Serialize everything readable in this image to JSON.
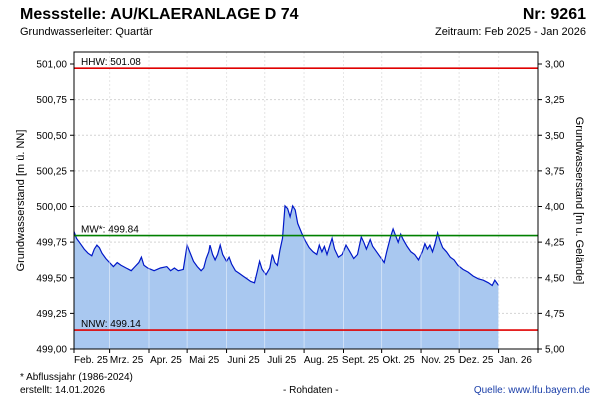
{
  "header": {
    "title_left": "Messstelle: AU/KLAERANLAGE D 74",
    "title_right": "Nr: 9261",
    "subtitle_left": "Grundwasserleiter: Quartär",
    "subtitle_right": "Zeitraum: Feb 2025 - Jan 2026"
  },
  "footer": {
    "note": "* Abflussjahr (1986-2024)",
    "created": "erstellt:  14.01.2026",
    "status": "- Rohdaten -",
    "source": "Quelle:  www.lfu.bayern.de"
  },
  "chart_data": {
    "type": "area",
    "ylabel": "Grundwasserstand [m ü. NN]",
    "ylabel_right": "Grundwasserstand [m u. Gelände]",
    "ylim": [
      499.0,
      501.2
    ],
    "y_ticks": [
      "501,00",
      "500,75",
      "500,50",
      "500,25",
      "500,00",
      "499,75",
      "499,50",
      "499,25",
      "499,00"
    ],
    "y_right_ticks": [
      "3,00",
      "3,25",
      "3,50",
      "3,75",
      "4,00",
      "4,25",
      "4,50",
      "4,75",
      "5,00"
    ],
    "x_range": [
      "2025-02-01",
      "2026-02-01"
    ],
    "x_tick_labels": [
      "Feb. 25",
      "Mrz. 25",
      "Apr. 25",
      "Mai 25",
      "Juni 25",
      "Juli 25",
      "Aug. 25",
      "Sept. 25",
      "Okt. 25",
      "Nov. 25",
      "Dez. 25",
      "Jan. 26"
    ],
    "grid": true,
    "reference_lines": [
      {
        "label": "HHW: 501.08",
        "value": 501.08,
        "color": "#e00000"
      },
      {
        "label": "MW*: 499.84",
        "value": 499.84,
        "color": "#008000"
      },
      {
        "label": "NNW: 499.14",
        "value": 499.14,
        "color": "#e00000"
      }
    ],
    "series": [
      {
        "fill": "#a9c8f0",
        "line": "#0018c8",
        "points": [
          [
            "2025-02-01",
            499.87
          ],
          [
            "2025-02-03",
            499.82
          ],
          [
            "2025-02-06",
            499.78
          ],
          [
            "2025-02-09",
            499.74
          ],
          [
            "2025-02-12",
            499.71
          ],
          [
            "2025-02-15",
            499.69
          ],
          [
            "2025-02-17",
            499.74
          ],
          [
            "2025-02-19",
            499.77
          ],
          [
            "2025-02-21",
            499.75
          ],
          [
            "2025-02-23",
            499.71
          ],
          [
            "2025-02-26",
            499.67
          ],
          [
            "2025-03-01",
            499.64
          ],
          [
            "2025-03-04",
            499.61
          ],
          [
            "2025-03-07",
            499.64
          ],
          [
            "2025-03-10",
            499.62
          ],
          [
            "2025-03-14",
            499.6
          ],
          [
            "2025-03-18",
            499.58
          ],
          [
            "2025-03-21",
            499.61
          ],
          [
            "2025-03-24",
            499.64
          ],
          [
            "2025-03-26",
            499.68
          ],
          [
            "2025-03-28",
            499.62
          ],
          [
            "2025-03-31",
            499.6
          ],
          [
            "2025-04-05",
            499.58
          ],
          [
            "2025-04-10",
            499.6
          ],
          [
            "2025-04-15",
            499.61
          ],
          [
            "2025-04-18",
            499.58
          ],
          [
            "2025-04-21",
            499.6
          ],
          [
            "2025-04-24",
            499.58
          ],
          [
            "2025-04-28",
            499.59
          ],
          [
            "2025-05-01",
            499.77
          ],
          [
            "2025-05-03",
            499.72
          ],
          [
            "2025-05-06",
            499.65
          ],
          [
            "2025-05-09",
            499.61
          ],
          [
            "2025-05-12",
            499.58
          ],
          [
            "2025-05-14",
            499.6
          ],
          [
            "2025-05-16",
            499.67
          ],
          [
            "2025-05-18",
            499.72
          ],
          [
            "2025-05-19",
            499.77
          ],
          [
            "2025-05-21",
            499.7
          ],
          [
            "2025-05-23",
            499.66
          ],
          [
            "2025-05-25",
            499.7
          ],
          [
            "2025-05-27",
            499.77
          ],
          [
            "2025-05-29",
            499.7
          ],
          [
            "2025-06-01",
            499.65
          ],
          [
            "2025-06-03",
            499.68
          ],
          [
            "2025-06-05",
            499.63
          ],
          [
            "2025-06-08",
            499.58
          ],
          [
            "2025-06-11",
            499.56
          ],
          [
            "2025-06-14",
            499.54
          ],
          [
            "2025-06-17",
            499.52
          ],
          [
            "2025-06-20",
            499.5
          ],
          [
            "2025-06-23",
            499.49
          ],
          [
            "2025-06-25",
            499.57
          ],
          [
            "2025-06-27",
            499.65
          ],
          [
            "2025-06-29",
            499.59
          ],
          [
            "2025-07-02",
            499.55
          ],
          [
            "2025-07-05",
            499.6
          ],
          [
            "2025-07-07",
            499.7
          ],
          [
            "2025-07-09",
            499.64
          ],
          [
            "2025-07-11",
            499.62
          ],
          [
            "2025-07-13",
            499.73
          ],
          [
            "2025-07-15",
            499.82
          ],
          [
            "2025-07-17",
            500.06
          ],
          [
            "2025-07-19",
            500.04
          ],
          [
            "2025-07-21",
            499.98
          ],
          [
            "2025-07-23",
            500.06
          ],
          [
            "2025-07-25",
            500.03
          ],
          [
            "2025-07-27",
            499.93
          ],
          [
            "2025-07-30",
            499.86
          ],
          [
            "2025-08-02",
            499.8
          ],
          [
            "2025-08-05",
            499.75
          ],
          [
            "2025-08-08",
            499.72
          ],
          [
            "2025-08-11",
            499.7
          ],
          [
            "2025-08-13",
            499.77
          ],
          [
            "2025-08-15",
            499.72
          ],
          [
            "2025-08-17",
            499.76
          ],
          [
            "2025-08-19",
            499.7
          ],
          [
            "2025-08-21",
            499.76
          ],
          [
            "2025-08-23",
            499.82
          ],
          [
            "2025-08-25",
            499.74
          ],
          [
            "2025-08-28",
            499.68
          ],
          [
            "2025-08-31",
            499.7
          ],
          [
            "2025-09-03",
            499.77
          ],
          [
            "2025-09-06",
            499.72
          ],
          [
            "2025-09-09",
            499.67
          ],
          [
            "2025-09-12",
            499.7
          ],
          [
            "2025-09-15",
            499.83
          ],
          [
            "2025-09-17",
            499.79
          ],
          [
            "2025-09-19",
            499.74
          ],
          [
            "2025-09-22",
            499.81
          ],
          [
            "2025-09-24",
            499.76
          ],
          [
            "2025-09-27",
            499.72
          ],
          [
            "2025-09-30",
            499.68
          ],
          [
            "2025-10-03",
            499.64
          ],
          [
            "2025-10-05",
            499.72
          ],
          [
            "2025-10-08",
            499.83
          ],
          [
            "2025-10-10",
            499.89
          ],
          [
            "2025-10-12",
            499.84
          ],
          [
            "2025-10-14",
            499.79
          ],
          [
            "2025-10-16",
            499.85
          ],
          [
            "2025-10-18",
            499.81
          ],
          [
            "2025-10-21",
            499.76
          ],
          [
            "2025-10-24",
            499.72
          ],
          [
            "2025-10-27",
            499.7
          ],
          [
            "2025-10-30",
            499.66
          ],
          [
            "2025-11-02",
            499.72
          ],
          [
            "2025-11-04",
            499.78
          ],
          [
            "2025-11-06",
            499.74
          ],
          [
            "2025-11-08",
            499.77
          ],
          [
            "2025-11-10",
            499.72
          ],
          [
            "2025-11-12",
            499.78
          ],
          [
            "2025-11-14",
            499.86
          ],
          [
            "2025-11-16",
            499.8
          ],
          [
            "2025-11-18",
            499.75
          ],
          [
            "2025-11-21",
            499.72
          ],
          [
            "2025-11-24",
            499.68
          ],
          [
            "2025-11-27",
            499.66
          ],
          [
            "2025-11-30",
            499.62
          ],
          [
            "2025-12-04",
            499.59
          ],
          [
            "2025-12-08",
            499.57
          ],
          [
            "2025-12-12",
            499.54
          ],
          [
            "2025-12-16",
            499.52
          ],
          [
            "2025-12-20",
            499.51
          ],
          [
            "2025-12-24",
            499.49
          ],
          [
            "2025-12-27",
            499.47
          ],
          [
            "2025-12-29",
            499.51
          ],
          [
            "2026-01-01",
            499.47
          ]
        ]
      }
    ]
  }
}
